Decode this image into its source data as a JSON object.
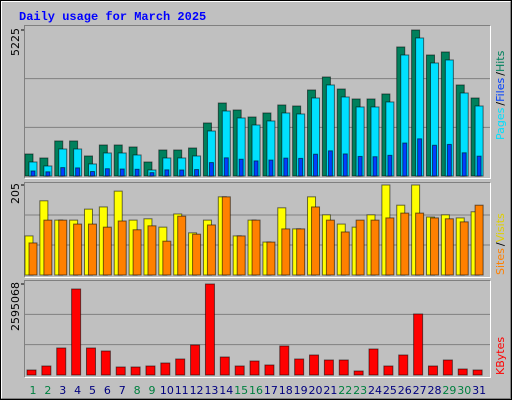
{
  "chart_data": [
    {
      "type": "bar",
      "title": "Daily usage for March 2025",
      "ylim": [
        0,
        5225
      ],
      "yticks": [
        5225
      ],
      "grid_divisions": 3,
      "legend_separator": "/",
      "series": [
        {
          "name": "Hits",
          "color": "#00805c",
          "values": [
            787,
            644,
            1253,
            1253,
            716,
            1109,
            1109,
            1038,
            501,
            930,
            930,
            1002,
            1897,
            2612,
            2362,
            2111,
            2255,
            2541,
            2505,
            3078,
            3543,
            3113,
            2756,
            2756,
            2935,
            4617,
            5225,
            4330,
            4438,
            3257,
            2791
          ]
        },
        {
          "name": "Files",
          "color": "#0040ff",
          "values": [
            180,
            150,
            300,
            290,
            160,
            260,
            250,
            240,
            120,
            220,
            215,
            230,
            480,
            650,
            600,
            540,
            570,
            640,
            630,
            780,
            900,
            790,
            700,
            690,
            740,
            1180,
            1330,
            1100,
            1130,
            830,
            710
          ]
        },
        {
          "name": "Pages",
          "color": "#00e0ff",
          "values": [
            501,
            358,
            966,
            966,
            430,
            823,
            823,
            752,
            215,
            644,
            644,
            716,
            1610,
            2326,
            2076,
            1825,
            1969,
            2255,
            2219,
            2791,
            3257,
            2827,
            2470,
            2470,
            2649,
            4330,
            4939,
            4044,
            4152,
            2970,
            2505
          ]
        }
      ]
    },
    {
      "type": "bar",
      "ylim": [
        0,
        205
      ],
      "yticks": [
        205
      ],
      "grid_divisions": 3,
      "legend_separator": "/",
      "series": [
        {
          "name": "Visits",
          "color": "#ffff00",
          "values": [
            89,
            169,
            125,
            125,
            150,
            155,
            191,
            125,
            128,
            109,
            139,
            96,
            125,
            178,
            89,
            125,
            75,
            153,
            105,
            178,
            137,
            116,
            109,
            137,
            205,
            159,
            205,
            132,
            137,
            130,
            144
          ]
        },
        {
          "name": "Sites",
          "color": "#ff8000",
          "values": [
            73,
            125,
            125,
            116,
            116,
            109,
            123,
            103,
            112,
            77,
            134,
            93,
            114,
            178,
            89,
            125,
            75,
            105,
            105,
            155,
            125,
            98,
            125,
            125,
            130,
            141,
            141,
            130,
            128,
            121,
            159
          ]
        }
      ]
    },
    {
      "type": "bar",
      "ylim": [
        0,
        2595068
      ],
      "yticks": [
        2595068
      ],
      "grid_divisions": 3,
      "categories": [
        "1",
        "2",
        "3",
        "4",
        "5",
        "6",
        "7",
        "8",
        "9",
        "10",
        "11",
        "12",
        "13",
        "14",
        "15",
        "16",
        "17",
        "18",
        "19",
        "20",
        "21",
        "22",
        "23",
        "24",
        "25",
        "26",
        "27",
        "28",
        "29",
        "30",
        "31"
      ],
      "category_colors": [
        "#008040",
        "#008040",
        "#00007f",
        "#00007f",
        "#00007f",
        "#00007f",
        "#00007f",
        "#008040",
        "#008040",
        "#00007f",
        "#00007f",
        "#00007f",
        "#00007f",
        "#00007f",
        "#008040",
        "#008040",
        "#00007f",
        "#00007f",
        "#00007f",
        "#00007f",
        "#00007f",
        "#008040",
        "#008040",
        "#00007f",
        "#00007f",
        "#00007f",
        "#00007f",
        "#00007f",
        "#008040",
        "#008040",
        "#00007f"
      ],
      "series": [
        {
          "name": "KBytes",
          "color": "#ff0000",
          "values": [
            142585,
            256654,
            769969,
            2452460,
            769969,
            684407,
            228135,
            228135,
            256654,
            342203,
            456271,
            855517,
            2595068,
            513305,
            256654,
            399237,
            285170,
            827000,
            456271,
            570340,
            427755,
            427755,
            114068,
            741442,
            256654,
            570340,
            1739537,
            256654,
            427755,
            171102,
            142585
          ]
        }
      ]
    }
  ]
}
